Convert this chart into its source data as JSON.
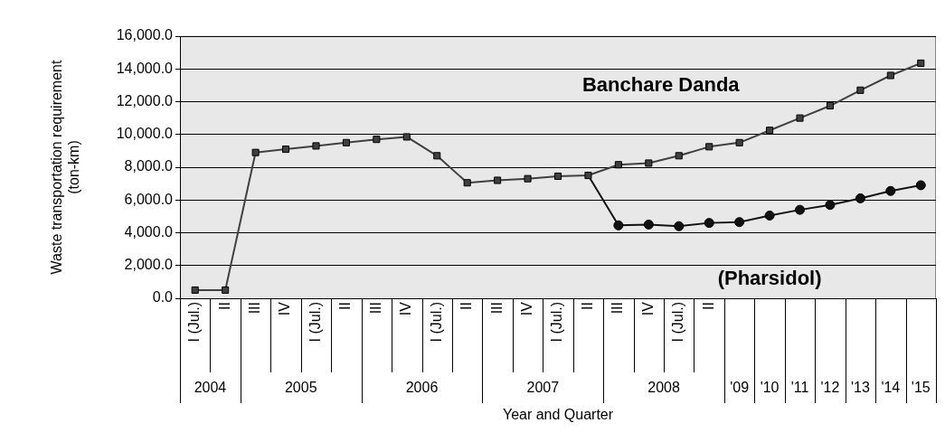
{
  "chart_data": {
    "type": "line",
    "xlabel": "Year and Quarter",
    "ylabel": "Waste transportation requirement\n(ton-km)",
    "categories": [
      "I (Jul.)",
      "II",
      "III",
      "IV",
      "I (Jul.)",
      "II",
      "III",
      "IV",
      "I (Jul.)",
      "II",
      "III",
      "IV",
      "I (Jul.)",
      "II",
      "III",
      "IV",
      "I (Jul.)",
      "II",
      null,
      null,
      null,
      null,
      null,
      null,
      null
    ],
    "series": [
      {
        "name": "Banchare Danda",
        "color": "#404040",
        "marker": "square",
        "values": [
          500,
          500,
          8900,
          9100,
          9300,
          9500,
          9700,
          9850,
          8700,
          7050,
          7200,
          7300,
          7450,
          7500,
          8150,
          8250,
          8700,
          9250,
          9500,
          10250,
          11000,
          11750,
          12700,
          13600,
          14350
        ]
      },
      {
        "name": "(Pharsidol)",
        "color": "#111111",
        "marker": "circle",
        "values": [
          null,
          null,
          null,
          null,
          null,
          null,
          null,
          null,
          null,
          null,
          null,
          null,
          null,
          7500,
          4450,
          4500,
          4400,
          4600,
          4650,
          5050,
          5400,
          5700,
          6100,
          6550,
          6900
        ]
      }
    ],
    "ylim": [
      0,
      16000
    ],
    "yticks": [
      {
        "value": 0,
        "label": "0.0"
      },
      {
        "value": 2000,
        "label": "2,000.0"
      },
      {
        "value": 4000,
        "label": "4,000.0"
      },
      {
        "value": 6000,
        "label": "6,000.0"
      },
      {
        "value": 8000,
        "label": "8,000.0"
      },
      {
        "value": 10000,
        "label": "10,000.0"
      },
      {
        "value": 12000,
        "label": "12,000.0"
      },
      {
        "value": 14000,
        "label": "14,000.0"
      },
      {
        "value": 16000,
        "label": "16,000.0"
      }
    ],
    "annotations": [
      "2004",
      "2005",
      "2006",
      "2007",
      "2008",
      "'09",
      "'10",
      "'11",
      "'12",
      "'13",
      "'14",
      "'15"
    ],
    "grid": "y",
    "legend": false,
    "line_style": "solid"
  }
}
